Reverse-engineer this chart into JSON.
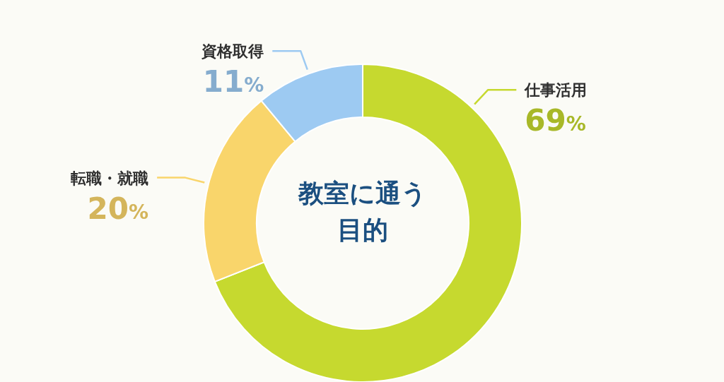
{
  "chart_data": {
    "type": "donut",
    "title": "教室に通う目的",
    "categories": [
      "仕事活用",
      "転職・就職",
      "資格取得"
    ],
    "values": [
      69,
      20,
      11
    ],
    "colors": [
      "#c6d92f",
      "#f9d56b",
      "#9dcaf2"
    ],
    "value_labels": [
      "69%",
      "20%",
      "11%"
    ]
  }
}
